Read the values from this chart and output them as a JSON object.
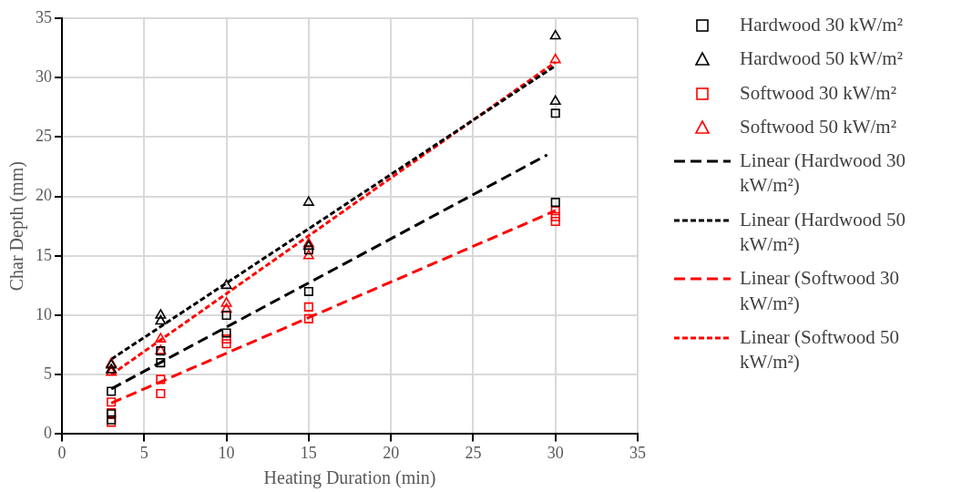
{
  "chart_data": {
    "type": "scatter",
    "xlabel": "Heating Duration (min)",
    "ylabel": "Char Depth (mm)",
    "xlim": [
      0,
      35
    ],
    "xticks": [
      0,
      5,
      10,
      15,
      20,
      25,
      30,
      35
    ],
    "ylim": [
      0,
      35
    ],
    "yticks": [
      0,
      5,
      10,
      15,
      20,
      25,
      30,
      35
    ],
    "grid": true,
    "legend": "right",
    "series": [
      {
        "name": "Hardwood 30 kW/m²",
        "type": "scatter",
        "marker": "square",
        "color": "#000000",
        "x": [
          3,
          3,
          3,
          6,
          6,
          10,
          10,
          15,
          15,
          30,
          30
        ],
        "values": [
          3.6,
          1.7,
          1.2,
          7.0,
          6.0,
          10.0,
          8.5,
          15.5,
          12.0,
          27.0,
          19.5
        ]
      },
      {
        "name": "Hardwood 50 kW/m²",
        "type": "scatter",
        "marker": "triangle",
        "color": "#000000",
        "x": [
          3,
          3,
          6,
          6,
          10,
          15,
          15,
          30,
          30
        ],
        "values": [
          5.8,
          5.4,
          10.0,
          9.5,
          12.5,
          19.5,
          15.8,
          33.5,
          28.0
        ]
      },
      {
        "name": "Softwood 30 kW/m²",
        "type": "scatter",
        "marker": "square",
        "color": "#ff0000",
        "x": [
          3,
          3,
          3,
          6,
          6,
          10,
          10,
          15,
          15,
          30,
          30,
          30
        ],
        "values": [
          2.7,
          1.8,
          1.0,
          4.6,
          3.4,
          8.0,
          7.6,
          10.7,
          9.7,
          18.8,
          18.3,
          17.9
        ]
      },
      {
        "name": "Softwood 50 kW/m²",
        "type": "scatter",
        "marker": "triangle",
        "color": "#ff0000",
        "x": [
          3,
          3,
          6,
          6,
          10,
          10,
          15,
          15,
          30
        ],
        "values": [
          5.9,
          5.2,
          8.0,
          7.0,
          11.0,
          10.5,
          16.0,
          15.0,
          31.5
        ]
      },
      {
        "name": "Linear (Hardwood 30 kW/m²)",
        "type": "line",
        "line_style": "dashed",
        "color": "#000000",
        "x": [
          3,
          29.5
        ],
        "values": [
          3.8,
          23.5
        ]
      },
      {
        "name": "Linear (Hardwood 50 kW/m²)",
        "type": "line",
        "line_style": "dotted",
        "color": "#000000",
        "x": [
          3,
          30
        ],
        "values": [
          6.3,
          31
        ]
      },
      {
        "name": "Linear (Softwood 30 kW/m²)",
        "type": "line",
        "line_style": "dashed",
        "color": "#ff0000",
        "x": [
          3,
          30
        ],
        "values": [
          2.6,
          18.8
        ]
      },
      {
        "name": "Linear (Softwood 50 kW/m²)",
        "type": "line",
        "line_style": "dotted",
        "color": "#ff0000",
        "x": [
          3,
          30
        ],
        "values": [
          5.0,
          31.3
        ]
      }
    ]
  }
}
